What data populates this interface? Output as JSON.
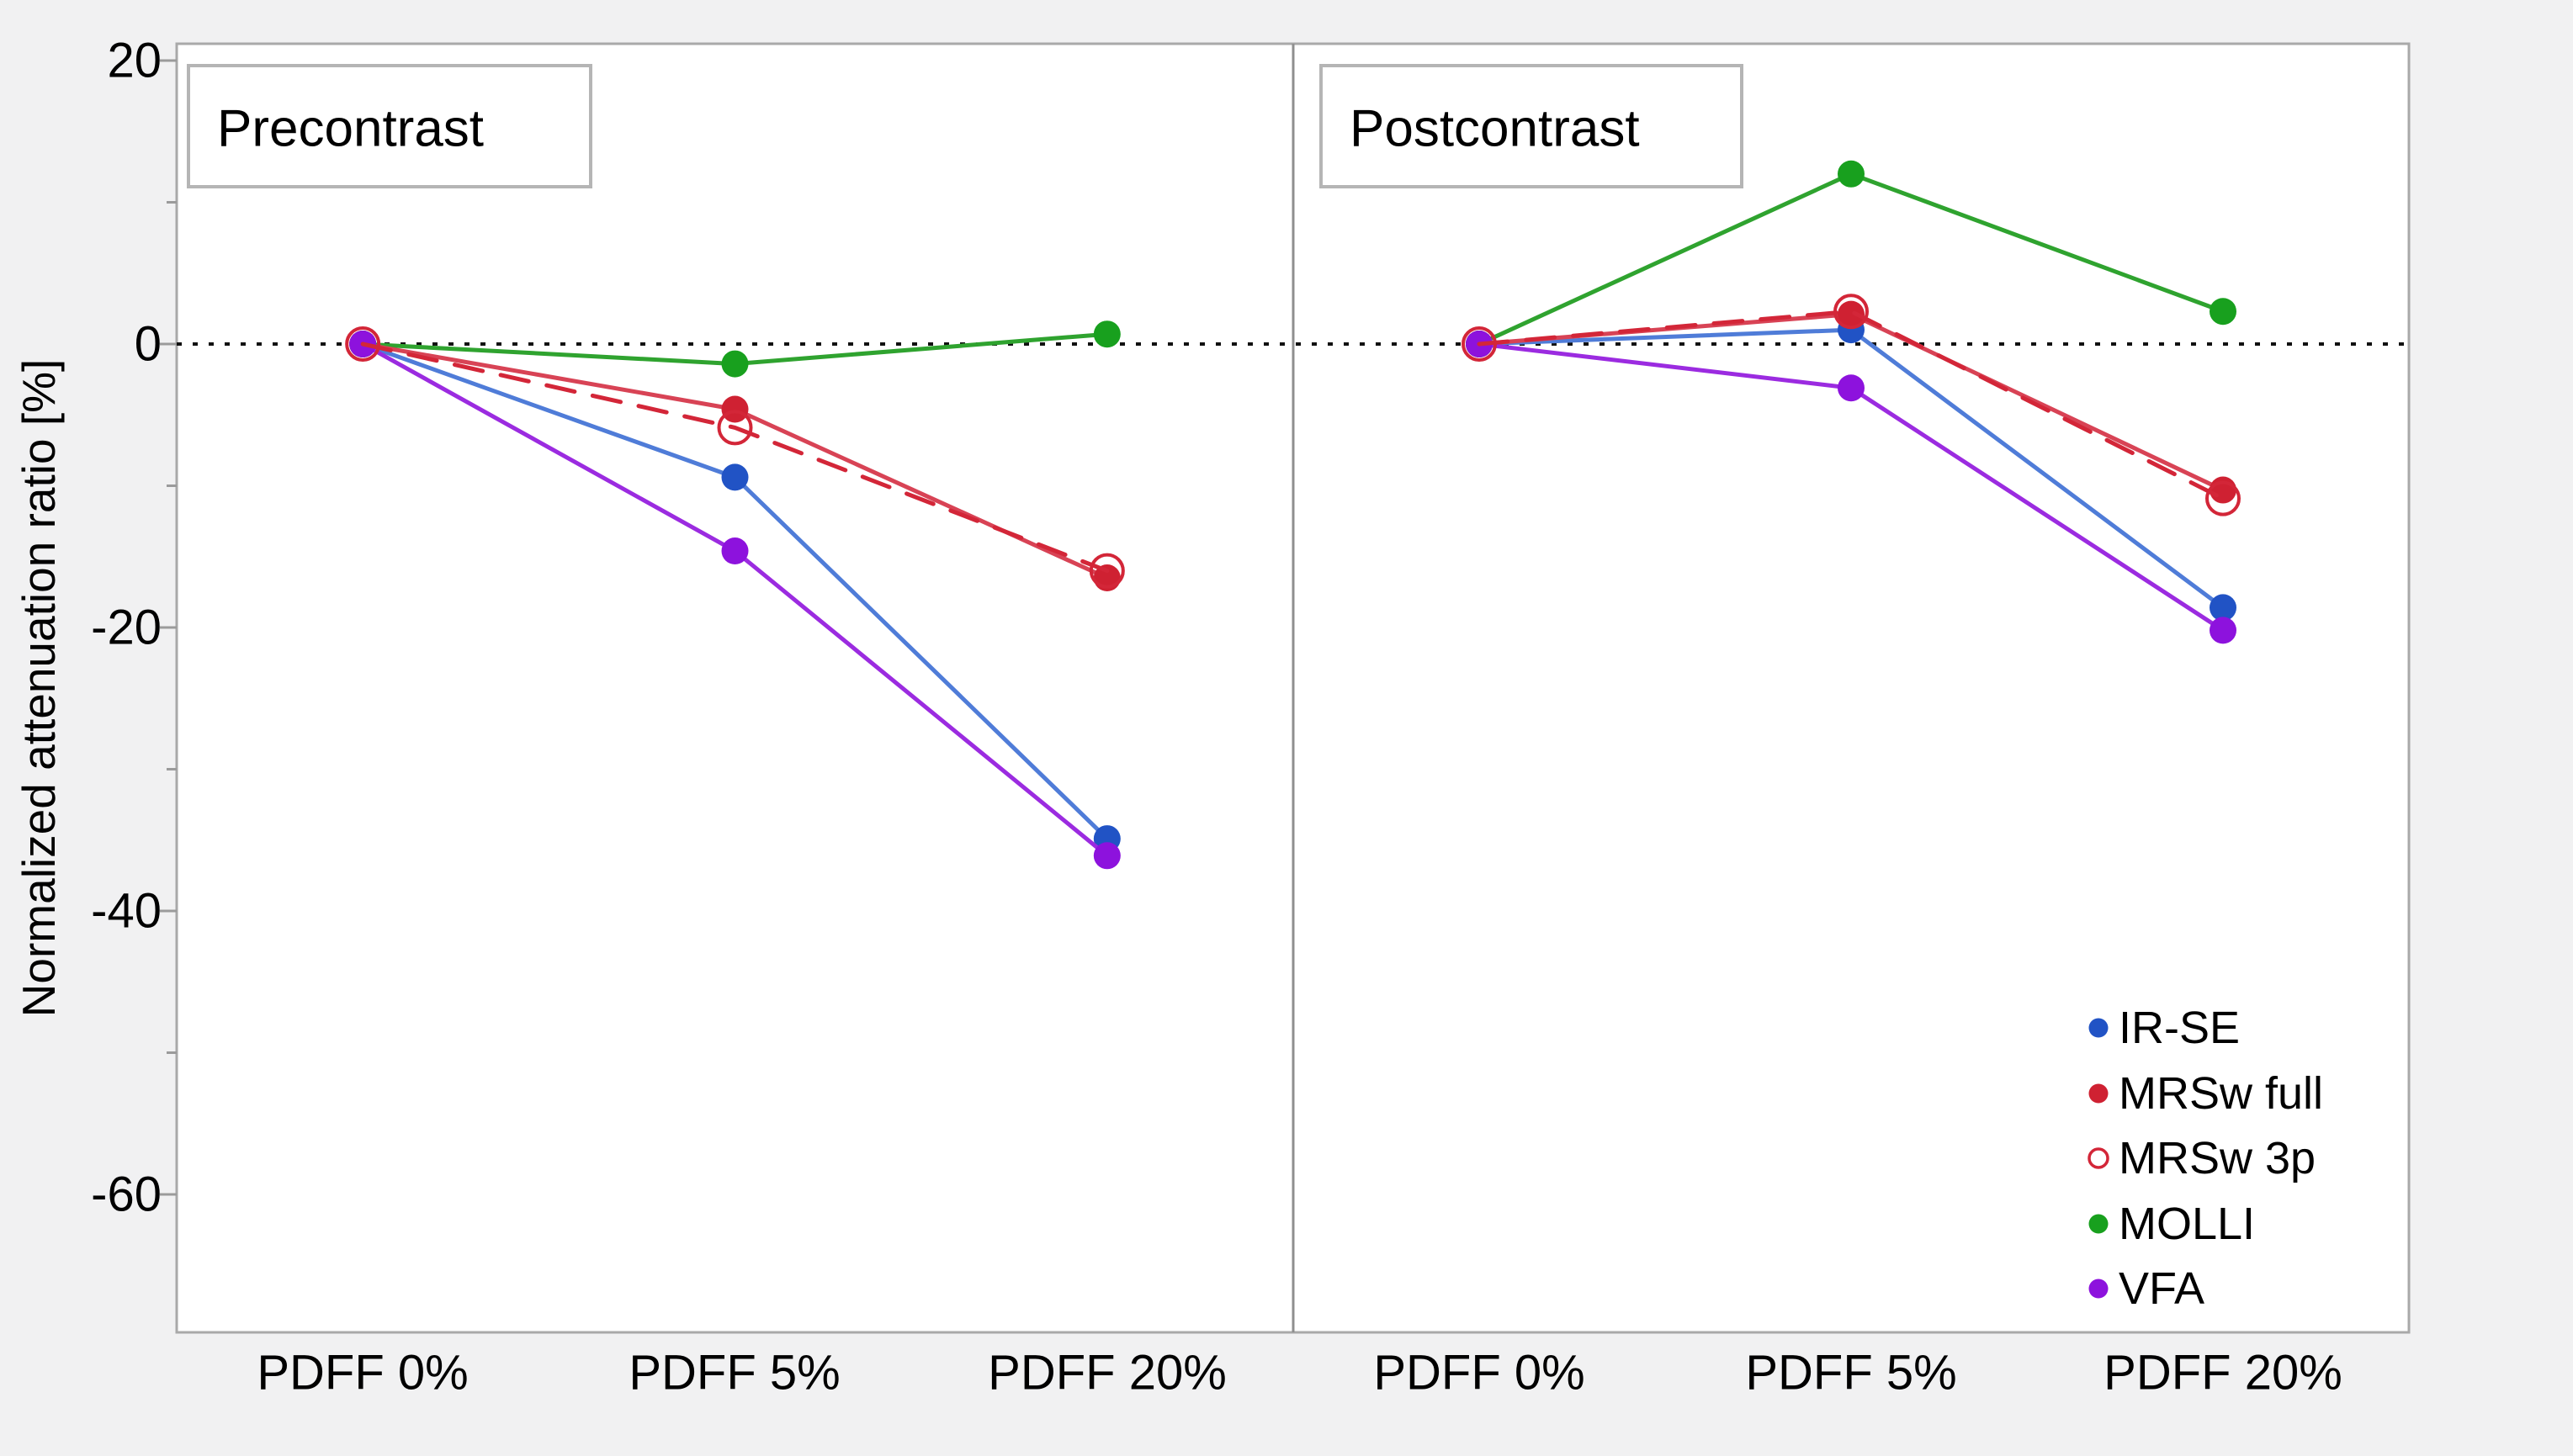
{
  "figure": {
    "y_axis": {
      "tick_labels": [
        "20",
        "0",
        "-20",
        "-40",
        "-60"
      ],
      "major_ticks": [
        20,
        0,
        -20,
        -40,
        -60
      ],
      "minor_ticks": [
        10,
        -10,
        -30,
        -50
      ]
    }
  },
  "chart_data": {
    "type": "line",
    "categories": [
      "PDFF 0%",
      "PDFF 5%",
      "PDFF 20%"
    ],
    "ylabel": "Normalized attenuation ratio [%]",
    "ylim": [
      -70,
      21
    ],
    "zero_reference_line": true,
    "legend_position": "bottom-right-of-second-panel",
    "panels": [
      {
        "title": "Precontrast",
        "series": [
          {
            "name": "IR-SE",
            "values": [
              0,
              -9.4,
              -34.9
            ]
          },
          {
            "name": "MRSw full",
            "values": [
              0,
              -4.6,
              -16.5
            ]
          },
          {
            "name": "MRSw 3p",
            "values": [
              0,
              -5.9,
              -16.0
            ]
          },
          {
            "name": "MOLLI",
            "values": [
              0,
              -1.4,
              0.7
            ]
          },
          {
            "name": "VFA",
            "values": [
              0,
              -14.6,
              -36.1
            ]
          }
        ]
      },
      {
        "title": "Postcontrast",
        "series": [
          {
            "name": "IR-SE",
            "values": [
              0,
              1.0,
              -18.6
            ]
          },
          {
            "name": "MRSw full",
            "values": [
              0,
              2.1,
              -10.3
            ]
          },
          {
            "name": "MRSw 3p",
            "values": [
              0,
              2.3,
              -10.9
            ]
          },
          {
            "name": "MOLLI",
            "values": [
              0,
              12.0,
              2.3
            ]
          },
          {
            "name": "VFA",
            "values": [
              0,
              -3.1,
              -20.2
            ]
          }
        ]
      }
    ],
    "legend": [
      {
        "label": "IR-SE",
        "marker_color": "#2153c5",
        "line_color": "#4f7cd8",
        "marker": "filled",
        "line": "solid"
      },
      {
        "label": "MRSw full",
        "marker_color": "#cf2132",
        "line_color": "#d84355",
        "marker": "filled",
        "line": "solid"
      },
      {
        "label": "MRSw 3p",
        "marker_color": "#d32638",
        "line_color": "#d32638",
        "marker": "open",
        "line": "dashed"
      },
      {
        "label": "MOLLI",
        "marker_color": "#18a01e",
        "line_color": "#2fa32f",
        "marker": "filled",
        "line": "solid"
      },
      {
        "label": "VFA",
        "marker_color": "#8d12dd",
        "line_color": "#9b2be0",
        "marker": "filled",
        "line": "solid"
      }
    ]
  },
  "colors": {
    "figure_bg": "#f1f1f2",
    "plot_bg": "#ffffff",
    "frame": "#a9a9a9",
    "divider": "#8f8f8f",
    "tick": "#9b9b9b",
    "zero_line": "#111111",
    "box_border": "#b5b5b5",
    "box_fill": "#ffffff"
  }
}
